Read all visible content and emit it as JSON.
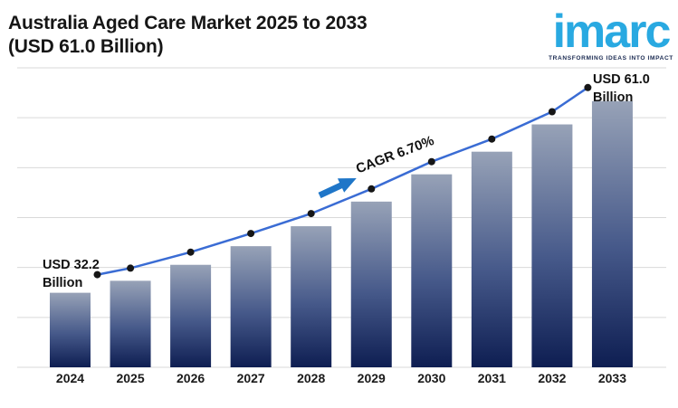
{
  "header": {
    "title_line1": "Australia Aged Care Market 2025 to 2033",
    "title_line2": "(USD 61.0 Billion)"
  },
  "logo": {
    "wordmark": "imarc",
    "tagline": "TRANSFORMING IDEAS INTO IMPACT",
    "brand_color": "#29A9E1",
    "tagline_color": "#1B2B52"
  },
  "annotations": {
    "start_line1": "USD 32.2",
    "start_line2": "Billion",
    "end_line1": "USD 61.0",
    "end_line2": "Billion",
    "cagr": "CAGR 6.70%"
  },
  "chart_data": {
    "type": "bar",
    "title": "Australia Aged Care Market 2025 to 2033 (USD 61.0 Billion)",
    "categories": [
      "2024",
      "2025",
      "2026",
      "2027",
      "2028",
      "2029",
      "2030",
      "2031",
      "2032",
      "2033"
    ],
    "series": [
      {
        "name": "Market size (USD Billion)",
        "type": "bar",
        "values": [
          32.2,
          34.0,
          36.4,
          39.2,
          42.2,
          45.9,
          50.0,
          53.4,
          57.5,
          61.0
        ]
      },
      {
        "name": "Growth trend line",
        "type": "line",
        "values": [
          32.2,
          34.0,
          36.4,
          39.2,
          42.2,
          45.9,
          50.0,
          53.4,
          57.5,
          61.0
        ]
      }
    ],
    "labeled_points": {
      "2024": "USD 32.2 Billion",
      "2033": "USD 61.0 Billion"
    },
    "cagr_annotation": "CAGR 6.70%",
    "xlabel": "",
    "ylabel": "",
    "value_axis": {
      "min": 21,
      "max": 66,
      "gridlines": 7,
      "labels_visible": false
    },
    "grid": true,
    "legend": "none",
    "colors": {
      "bar_top": "#97A2B7",
      "bar_mid": "#46598A",
      "bar_bottom": "#0E1E52",
      "line": "#3A6CD4",
      "dot": "#161616",
      "grid": "#D9D9D9",
      "arrow": "#1F76C8"
    }
  }
}
